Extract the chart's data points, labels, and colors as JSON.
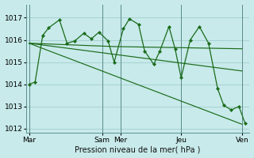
{
  "background_color": "#c8eaea",
  "grid_color": "#99c8c8",
  "line_color": "#1a6b1a",
  "xlabel": "Pression niveau de la mer( hPa )",
  "ylim": [
    1011.8,
    1017.6
  ],
  "yticks": [
    1012,
    1013,
    1014,
    1015,
    1016,
    1017
  ],
  "xlim": [
    -2,
    145
  ],
  "day_labels": [
    "Mar",
    "Sam",
    "Mer",
    "Jeu",
    "Ven"
  ],
  "day_positions": [
    0,
    48,
    60,
    100,
    140
  ],
  "zigzag": {
    "x": [
      0,
      4,
      9,
      13,
      20,
      25,
      30,
      36,
      41,
      46,
      52,
      56,
      62,
      66,
      72,
      76,
      82,
      86,
      92,
      96,
      100,
      106,
      112,
      118,
      124,
      128,
      133,
      138,
      142
    ],
    "y": [
      1014.0,
      1014.1,
      1016.2,
      1016.55,
      1016.9,
      1015.85,
      1015.95,
      1016.3,
      1016.05,
      1016.35,
      1015.95,
      1015.0,
      1016.5,
      1016.95,
      1016.7,
      1015.5,
      1014.9,
      1015.5,
      1016.6,
      1015.6,
      1014.3,
      1016.0,
      1016.6,
      1015.85,
      1013.8,
      1013.05,
      1012.85,
      1013.0,
      1012.25
    ]
  },
  "line_flat": {
    "x": [
      0,
      56,
      100,
      140
    ],
    "y": [
      1015.85,
      1015.7,
      1015.65,
      1015.6
    ]
  },
  "line_medium": {
    "x": [
      0,
      140
    ],
    "y": [
      1015.85,
      1014.6
    ]
  },
  "line_steep": {
    "x": [
      0,
      140
    ],
    "y": [
      1015.85,
      1012.2
    ]
  }
}
